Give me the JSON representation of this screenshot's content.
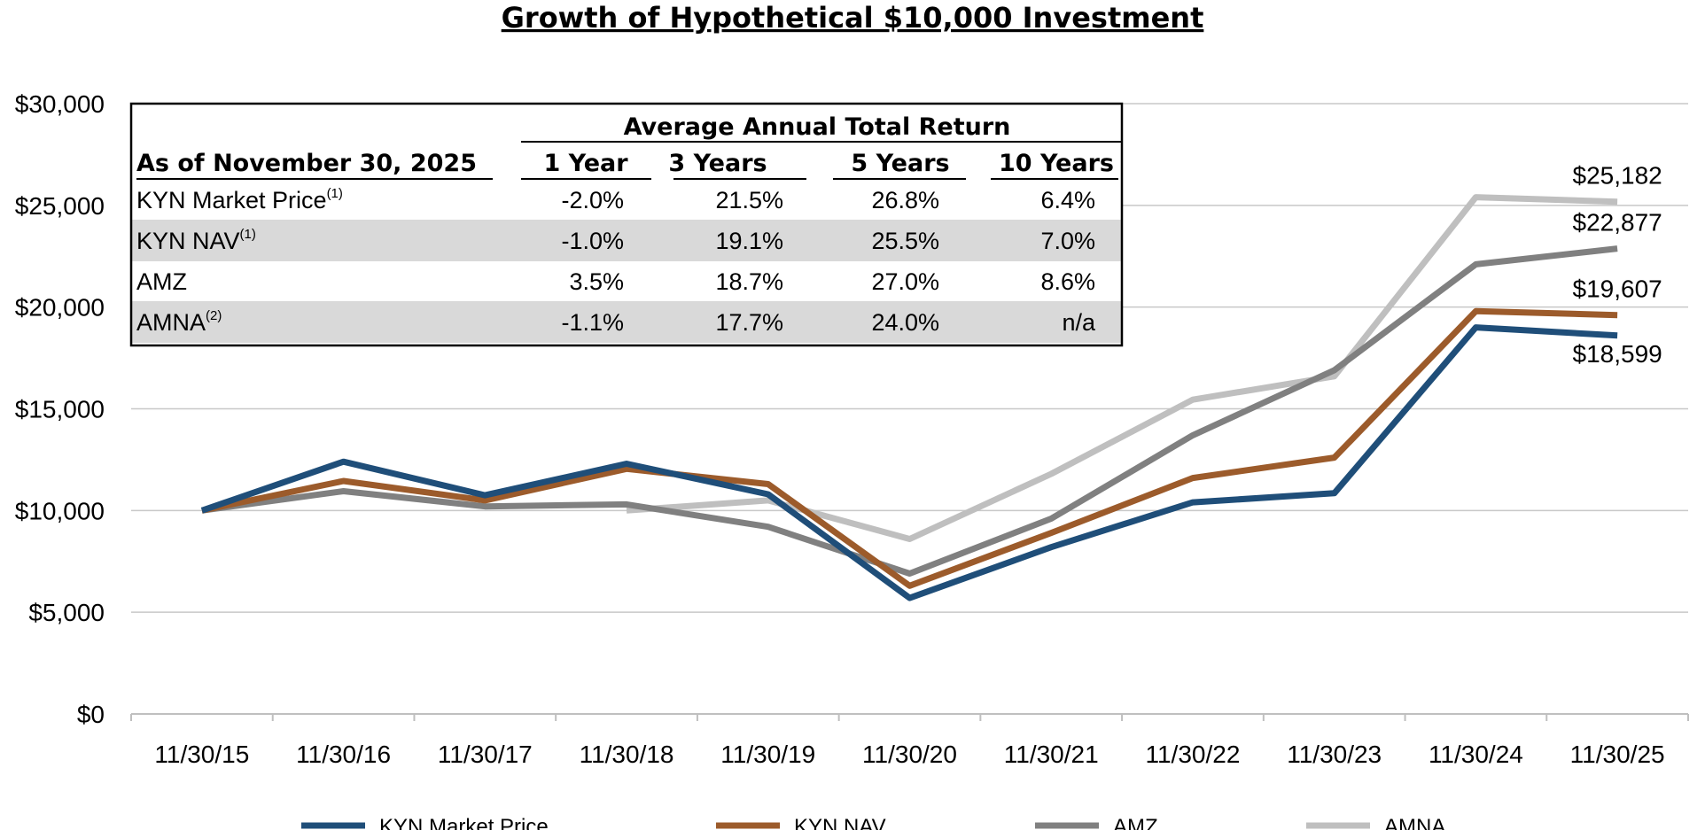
{
  "chart_data": {
    "type": "line",
    "title": "Growth of Hypothetical $10,000 Investment",
    "xlabel": "",
    "ylabel": "",
    "ylim": [
      0,
      30000
    ],
    "yticks": [
      0,
      5000,
      10000,
      15000,
      20000,
      25000,
      30000
    ],
    "ytick_labels": [
      "$0",
      "$5,000",
      "$10,000",
      "$15,000",
      "$20,000",
      "$25,000",
      "$30,000"
    ],
    "categories": [
      "11/30/15",
      "11/30/16",
      "11/30/17",
      "11/30/18",
      "11/30/19",
      "11/30/20",
      "11/30/21",
      "11/30/22",
      "11/30/23",
      "11/30/24",
      "11/30/25"
    ],
    "grid": true,
    "legend_position": "bottom",
    "series": [
      {
        "name": "AMNA",
        "color": "#bfbfbf",
        "values": [
          null,
          null,
          null,
          10000,
          10500,
          8600,
          11800,
          15450,
          16600,
          25400,
          25182
        ]
      },
      {
        "name": "AMZ",
        "color": "#808080",
        "values": [
          10000,
          10950,
          10200,
          10300,
          9200,
          6900,
          9600,
          13700,
          16900,
          22100,
          22877
        ]
      },
      {
        "name": "KYN NAV",
        "color": "#9c5b2b",
        "values": [
          10000,
          11450,
          10500,
          12050,
          11300,
          6300,
          8900,
          11600,
          12600,
          19800,
          19607
        ]
      },
      {
        "name": "KYN Market Price",
        "color": "#1f4e79",
        "values": [
          10000,
          12400,
          10750,
          12300,
          10800,
          5700,
          8200,
          10400,
          10850,
          19000,
          18599
        ]
      }
    ],
    "legend_order": [
      "KYN Market Price",
      "KYN NAV",
      "AMZ",
      "AMNA"
    ],
    "end_labels": [
      {
        "series": "AMNA",
        "text": "$25,182"
      },
      {
        "series": "AMZ",
        "text": "$22,877"
      },
      {
        "series": "KYN NAV",
        "text": "$19,607"
      },
      {
        "series": "KYN Market Price",
        "text": "$18,599"
      }
    ]
  },
  "returns_table": {
    "group_header": "Average Annual Total Return",
    "as_of": "As of November 30, 2025",
    "columns": [
      "1 Year",
      "3 Years",
      "5 Years",
      "10 Years"
    ],
    "rows": [
      {
        "name": "KYN Market Price",
        "sup": "(1)",
        "values": [
          "-2.0%",
          "21.5%",
          "26.8%",
          "6.4%"
        ],
        "shaded": false
      },
      {
        "name": "KYN NAV",
        "sup": "(1)",
        "values": [
          "-1.0%",
          "19.1%",
          "25.5%",
          "7.0%"
        ],
        "shaded": true
      },
      {
        "name": "AMZ",
        "sup": "",
        "values": [
          "3.5%",
          "18.7%",
          "27.0%",
          "8.6%"
        ],
        "shaded": false
      },
      {
        "name": "AMNA",
        "sup": "(2)",
        "values": [
          "-1.1%",
          "17.7%",
          "24.0%",
          "n/a"
        ],
        "shaded": true
      }
    ]
  }
}
